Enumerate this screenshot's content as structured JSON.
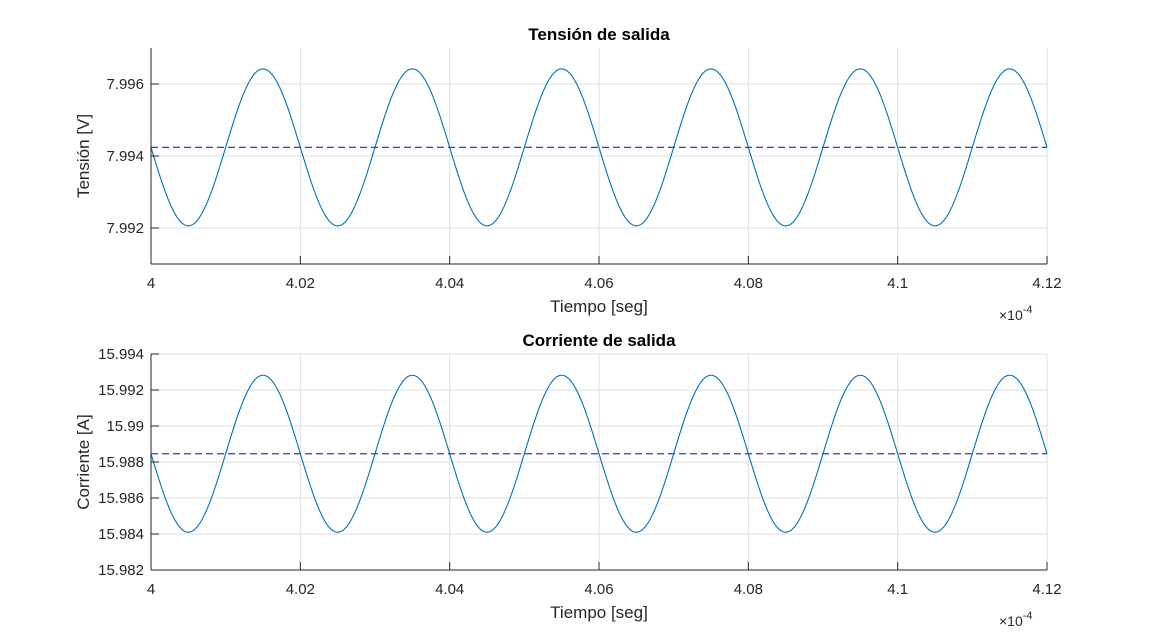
{
  "chart_data": [
    {
      "type": "line",
      "title": "Tensión de salida",
      "xlabel": "Tiempo [seg]",
      "ylabel": "Tensión [V]",
      "x_multiplier": "×10",
      "x_multiplier_exp": "-4",
      "xlim": [
        4.0,
        4.12
      ],
      "ylim": [
        7.991,
        7.997
      ],
      "x_ticks": [
        4.0,
        4.02,
        4.04,
        4.06,
        4.08,
        4.1,
        4.12
      ],
      "x_tick_labels": [
        "4",
        "4.02",
        "4.04",
        "4.06",
        "4.08",
        "4.1",
        "4.12"
      ],
      "y_ticks": [
        7.992,
        7.994,
        7.996
      ],
      "y_tick_labels": [
        "7.992",
        "7.994",
        "7.996"
      ],
      "grid": true,
      "series": [
        {
          "style": "solid",
          "color": "#0072BD",
          "shape": "sinusoid",
          "mean": 7.99424,
          "amplitude": 0.00218,
          "period": 0.02,
          "phase_x0": 4.0,
          "starts": "descending"
        },
        {
          "style": "dashed",
          "color": "#2A3CD6",
          "shape": "constant",
          "value": 7.99424
        }
      ]
    },
    {
      "type": "line",
      "title": "Corriente de salida",
      "xlabel": "Tiempo [seg]",
      "ylabel": "Corriente [A]",
      "x_multiplier": "×10",
      "x_multiplier_exp": "-4",
      "xlim": [
        4.0,
        4.12
      ],
      "ylim": [
        15.982,
        15.994
      ],
      "x_ticks": [
        4.0,
        4.02,
        4.04,
        4.06,
        4.08,
        4.1,
        4.12
      ],
      "x_tick_labels": [
        "4",
        "4.02",
        "4.04",
        "4.06",
        "4.08",
        "4.1",
        "4.12"
      ],
      "y_ticks": [
        15.982,
        15.984,
        15.986,
        15.988,
        15.99,
        15.992,
        15.994
      ],
      "y_tick_labels": [
        "15.982",
        "15.984",
        "15.986",
        "15.988",
        "15.99",
        "15.992",
        "15.994"
      ],
      "grid": true,
      "series": [
        {
          "style": "solid",
          "color": "#0072BD",
          "shape": "sinusoid",
          "mean": 15.98846,
          "amplitude": 0.00436,
          "period": 0.02,
          "phase_x0": 4.0,
          "starts": "descending"
        },
        {
          "style": "dashed",
          "color": "#2A3CD6",
          "shape": "constant",
          "value": 15.98846
        }
      ]
    }
  ]
}
